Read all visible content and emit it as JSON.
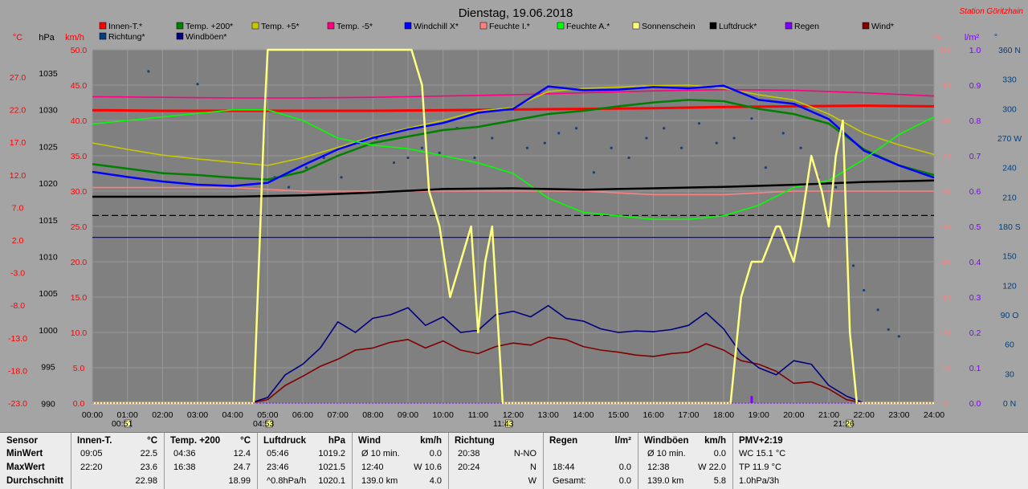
{
  "chart_data": {
    "type": "line",
    "title": "Dienstag, 19.06.2018",
    "station": "Station Göritzhain",
    "x_ticks": [
      "00:00",
      "01:00",
      "02:00",
      "03:00",
      "04:00",
      "05:00",
      "06:00",
      "07:00",
      "08:00",
      "09:00",
      "10:00",
      "11:00",
      "12:00",
      "13:00",
      "14:00",
      "15:00",
      "16:00",
      "17:00",
      "18:00",
      "19:00",
      "20:00",
      "21:00",
      "22:00",
      "23:00",
      "24:00"
    ],
    "sun_markers": [
      {
        "label": "00:51",
        "x": 0.85
      },
      {
        "label": "04:53",
        "x": 4.88
      },
      {
        "label": "11:43",
        "x": 11.72
      },
      {
        "label": "21:26",
        "x": 21.43
      }
    ],
    "axes": {
      "temp": {
        "label": "°C",
        "ticks": [
          "27.0",
          "22.0",
          "17.0",
          "12.0",
          "7.0",
          "2.0",
          "-3.0",
          "-8.0",
          "-13.0",
          "-18.0",
          "-23.0"
        ],
        "range": [
          -23,
          32
        ]
      },
      "pressure": {
        "label": "hPa",
        "ticks": [
          "1035",
          "1030",
          "1025",
          "1020",
          "1015",
          "1010",
          "1005",
          "1000",
          "995",
          "990"
        ],
        "range": [
          990,
          1040
        ]
      },
      "wind": {
        "label": "km/h",
        "ticks": [
          "50.0",
          "45.0",
          "40.0",
          "35.0",
          "30.0",
          "25.0",
          "20.0",
          "15.0",
          "10.0",
          "5.0",
          "0.0"
        ],
        "range": [
          0,
          50
        ]
      },
      "humidity": {
        "label": "%",
        "ticks": [
          "100",
          "90",
          "80",
          "70",
          "60",
          "50",
          "40",
          "30",
          "20",
          "10",
          "0"
        ],
        "range": [
          0,
          100
        ]
      },
      "rain": {
        "label": "l/m²",
        "ticks": [
          "1.0",
          "0.9",
          "0.8",
          "0.7",
          "0.6",
          "0.5",
          "0.4",
          "0.3",
          "0.2",
          "0.1",
          "0.0"
        ],
        "range": [
          0,
          1
        ]
      },
      "direction": {
        "label": "°",
        "ticks": [
          "360 N",
          "330",
          "300",
          "270 W",
          "240",
          "210",
          "180 S",
          "150",
          "120",
          "90 O",
          "60",
          "30",
          "0 N"
        ],
        "range": [
          0,
          360
        ]
      }
    },
    "legend": [
      {
        "name": "Innen-T.*",
        "color": "#ff0000"
      },
      {
        "name": "Temp. +200*",
        "color": "#007f00"
      },
      {
        "name": "Temp. +5*",
        "color": "#c8c800"
      },
      {
        "name": "Temp. -5*",
        "color": "#ff0080"
      },
      {
        "name": "Windchill X*",
        "color": "#0000ff"
      },
      {
        "name": "Feuchte I.*",
        "color": "#ff8080"
      },
      {
        "name": "Feuchte A.*",
        "color": "#00ff00"
      },
      {
        "name": "Sonnenschein",
        "color": "#ffff80"
      },
      {
        "name": "Luftdruck*",
        "color": "#000000"
      },
      {
        "name": "Regen",
        "color": "#8000ff"
      },
      {
        "name": "Wind*",
        "color": "#800000"
      },
      {
        "name": "Richtung*",
        "color": "#004080"
      },
      {
        "name": "Windböen*",
        "color": "#000080"
      }
    ],
    "series": [
      {
        "name": "Innen-T.*",
        "axis": "temp",
        "x": [
          0,
          2,
          4,
          6,
          8,
          10,
          12,
          14,
          16,
          18,
          20,
          22,
          24
        ],
        "y": [
          22.6,
          22.5,
          22.5,
          22.5,
          22.5,
          22.6,
          22.7,
          22.8,
          22.9,
          23.1,
          23.2,
          23.3,
          23.2
        ]
      },
      {
        "name": "Temp. +200*",
        "axis": "temp",
        "x": [
          0,
          1,
          2,
          3,
          4,
          5,
          6,
          7,
          8,
          9,
          10,
          11,
          12,
          13,
          14,
          15,
          16,
          17,
          18,
          19,
          20,
          21,
          22,
          23,
          24
        ],
        "y": [
          14.2,
          13.5,
          12.8,
          12.5,
          12.1,
          11.8,
          13.0,
          15.5,
          17.5,
          18.5,
          19.5,
          20.0,
          21.0,
          22.0,
          22.5,
          23.2,
          23.8,
          24.2,
          24.0,
          22.8,
          22.0,
          20.5,
          16.5,
          14.0,
          12.5
        ]
      },
      {
        "name": "Temp. +5*",
        "axis": "temp",
        "x": [
          0,
          1,
          2,
          3,
          4,
          5,
          6,
          7,
          8,
          9,
          10,
          11,
          12,
          13,
          14,
          15,
          16,
          17,
          18,
          19,
          20,
          21,
          22,
          23,
          24
        ],
        "y": [
          17.5,
          16.5,
          15.6,
          15.0,
          14.5,
          14.0,
          15.2,
          16.8,
          18.5,
          19.8,
          21.0,
          22.5,
          23.0,
          25.5,
          26.0,
          26.2,
          26.4,
          26.5,
          26.0,
          25.0,
          24.2,
          22.0,
          19.0,
          17.2,
          15.7
        ]
      },
      {
        "name": "Temp. -5*",
        "axis": "temp",
        "x": [
          0,
          2,
          4,
          6,
          8,
          10,
          12,
          14,
          16,
          18,
          20,
          22,
          24
        ],
        "y": [
          24.7,
          24.6,
          24.5,
          24.5,
          24.6,
          24.8,
          25.0,
          25.3,
          25.6,
          25.8,
          25.7,
          25.3,
          24.8
        ]
      },
      {
        "name": "Windchill X*",
        "axis": "temp",
        "x": [
          0,
          1,
          2,
          3,
          4,
          5,
          6,
          7,
          8,
          9,
          10,
          11,
          12,
          13,
          14,
          15,
          16,
          17,
          18,
          19,
          20,
          21,
          22,
          23,
          24
        ],
        "y": [
          13.0,
          12.2,
          11.5,
          11.0,
          10.8,
          11.3,
          14.0,
          16.5,
          18.3,
          19.6,
          20.6,
          22.2,
          22.8,
          26.3,
          25.7,
          25.8,
          26.2,
          26.0,
          26.4,
          24.2,
          23.6,
          21.2,
          16.3,
          14.0,
          12.1
        ]
      },
      {
        "name": "Feuchte I.*",
        "axis": "humidity",
        "x": [
          0,
          2,
          4,
          6,
          8,
          10,
          12,
          14,
          16,
          18,
          20,
          22,
          24
        ],
        "y": [
          61,
          61,
          61,
          60,
          60,
          60,
          60,
          60,
          59,
          59,
          60,
          60,
          60
        ]
      },
      {
        "name": "Feuchte A.*",
        "axis": "humidity",
        "x": [
          0,
          1,
          2,
          3,
          4,
          5,
          6,
          7,
          8,
          9,
          10,
          11,
          12,
          13,
          14,
          15,
          16,
          17,
          18,
          19,
          20,
          21,
          22,
          23,
          24
        ],
        "y": [
          79,
          80,
          81,
          82,
          83,
          83,
          80,
          75,
          73,
          72,
          70,
          68,
          65,
          58,
          54,
          53,
          52,
          52,
          53,
          56,
          61,
          63,
          69,
          76,
          81
        ]
      },
      {
        "name": "Luftdruck*",
        "axis": "pressure",
        "x": [
          0,
          2,
          4,
          6,
          8,
          10,
          12,
          14,
          16,
          18,
          20,
          22,
          24
        ],
        "y": [
          1019.2,
          1019.2,
          1019.2,
          1019.4,
          1019.8,
          1020.3,
          1020.4,
          1020.2,
          1020.4,
          1020.6,
          1020.9,
          1021.3,
          1021.5
        ]
      },
      {
        "name": "Sonnenschein",
        "axis": "wind",
        "x": [
          0,
          4.6,
          4.9,
          5.0,
          9.1,
          9.4,
          9.6,
          9.9,
          10.2,
          10.5,
          10.8,
          11.0,
          11.2,
          11.4,
          11.7,
          11.8,
          12.0,
          18.0,
          18.2,
          18.5,
          18.8,
          19.1,
          19.5,
          19.6,
          20.0,
          20.2,
          20.5,
          20.8,
          21.0,
          21.2,
          21.4,
          21.6,
          21.8,
          22.0,
          24.0
        ],
        "y": [
          0,
          0,
          40,
          50,
          50,
          45,
          30,
          25,
          15,
          20,
          25,
          10,
          20,
          25,
          0,
          0,
          0,
          0,
          0,
          15,
          20,
          20,
          25,
          25,
          20,
          25,
          35,
          30,
          25,
          35,
          40,
          10,
          0,
          0,
          0
        ]
      },
      {
        "name": "Wind*",
        "axis": "wind",
        "x": [
          0,
          4.5,
          5,
          5.5,
          6,
          6.5,
          7,
          7.5,
          8,
          8.5,
          9,
          9.5,
          10,
          10.5,
          11,
          11.5,
          12,
          12.5,
          13,
          13.5,
          14,
          14.5,
          15,
          15.5,
          16,
          16.5,
          17,
          17.5,
          18,
          18.5,
          19,
          19.5,
          20,
          20.5,
          21,
          21.5,
          22
        ],
        "y": [
          0,
          0,
          0.5,
          2.5,
          3.8,
          5.2,
          6.2,
          7.5,
          7.8,
          8.6,
          9.0,
          7.8,
          8.8,
          7.5,
          7.0,
          8.0,
          8.5,
          8.2,
          9.3,
          9.0,
          8.0,
          7.5,
          7.2,
          6.8,
          6.6,
          7.0,
          7.2,
          8.4,
          7.5,
          6.0,
          5.5,
          4.5,
          2.8,
          3.0,
          2.0,
          0.5,
          0
        ]
      },
      {
        "name": "Windböen*",
        "axis": "wind",
        "x": [
          0,
          4.5,
          5,
          5.5,
          6,
          6.5,
          7,
          7.5,
          8,
          8.5,
          9,
          9.5,
          10,
          10.5,
          11,
          11.5,
          12,
          12.5,
          13,
          13.5,
          14,
          14.5,
          15,
          15.5,
          16,
          16.5,
          17,
          17.5,
          18,
          18.5,
          19,
          19.5,
          20,
          20.5,
          21,
          21.5,
          22
        ],
        "y": [
          0,
          0,
          0.8,
          4.0,
          5.5,
          7.8,
          11.5,
          10.0,
          12.0,
          12.5,
          13.5,
          11.0,
          12.2,
          10.0,
          10.3,
          12.5,
          13.0,
          12.2,
          13.8,
          12.0,
          11.6,
          10.5,
          10.0,
          10.2,
          10.1,
          10.4,
          11.0,
          12.8,
          10.5,
          7.0,
          5.0,
          4.0,
          6.0,
          5.5,
          2.5,
          1.0,
          0
        ]
      }
    ],
    "direction_dots": {
      "axis": "direction",
      "x": [
        1.6,
        3.0,
        5.2,
        5.6,
        6.1,
        6.6,
        7.1,
        7.6,
        8.1,
        8.6,
        9.0,
        9.4,
        9.9,
        10.4,
        10.9,
        11.4,
        11.9,
        12.4,
        12.9,
        13.3,
        13.8,
        14.3,
        14.8,
        15.3,
        15.8,
        16.3,
        16.8,
        17.3,
        17.8,
        18.3,
        18.8,
        19.2,
        19.7,
        20.2,
        20.7,
        21.2,
        21.7,
        22.0,
        22.4,
        22.7,
        23.0
      ],
      "y": [
        338,
        325,
        230,
        220,
        240,
        250,
        230,
        265,
        270,
        245,
        250,
        260,
        255,
        280,
        250,
        270,
        300,
        260,
        265,
        275,
        280,
        235,
        260,
        250,
        270,
        280,
        260,
        285,
        265,
        270,
        290,
        240,
        275,
        260,
        230,
        220,
        140,
        115,
        95,
        75,
        68
      ]
    },
    "reference_lines": [
      {
        "axis": "temp",
        "value": 6.2,
        "color": "#000000",
        "style": "dashed"
      },
      {
        "axis": "temp",
        "value": 2.8,
        "color": "#0000ff",
        "style": "solid"
      }
    ],
    "rain_events": [
      {
        "x": 18.8,
        "y": 0.02
      }
    ]
  },
  "stats_table": {
    "sensor": {
      "header": "Sensor",
      "rows": [
        "MinWert",
        "MaxWert",
        "Durchschnitt"
      ]
    },
    "innen": {
      "header": "Innen-T.",
      "unit": "°C",
      "times": [
        "09:05",
        "22:20",
        ""
      ],
      "values": [
        "22.5",
        "23.6",
        "22.98"
      ]
    },
    "temp200": {
      "header": "Temp. +200",
      "unit": "°C",
      "times": [
        "04:36",
        "16:38",
        ""
      ],
      "values": [
        "12.4",
        "24.7",
        "18.99"
      ]
    },
    "luftdruck": {
      "header": "Luftdruck",
      "unit": "hPa",
      "times": [
        "05:46",
        "23:46",
        "^0.8hPa/h"
      ],
      "values": [
        "1019.2",
        "1021.5",
        "1020.1"
      ]
    },
    "wind": {
      "header": "Wind",
      "unit": "km/h",
      "times": [
        "Ø 10 min.",
        "12:40",
        "139.0 km"
      ],
      "values": [
        "0.0",
        "W 10.6",
        "4.0"
      ]
    },
    "richtung": {
      "header": "Richtung",
      "times": [
        "20:38",
        "20:24",
        ""
      ],
      "values": [
        "N-NO",
        "N",
        "W"
      ]
    },
    "regen": {
      "header": "Regen",
      "unit": "l/m²",
      "times": [
        "",
        "18:44",
        "Gesamt:"
      ],
      "values": [
        "",
        "0.0",
        "0.0"
      ]
    },
    "windboeen": {
      "header": "Windböen",
      "unit": "km/h",
      "times": [
        "Ø 10 min.",
        "12:38",
        "139.0 km"
      ],
      "values": [
        "0.0",
        "W 22.0",
        "5.8"
      ]
    },
    "pmv": {
      "header": "PMV+2:19",
      "rows": [
        "WC 15.1 °C",
        "TP 11.9 °C",
        "1.0hPa/3h"
      ]
    }
  }
}
